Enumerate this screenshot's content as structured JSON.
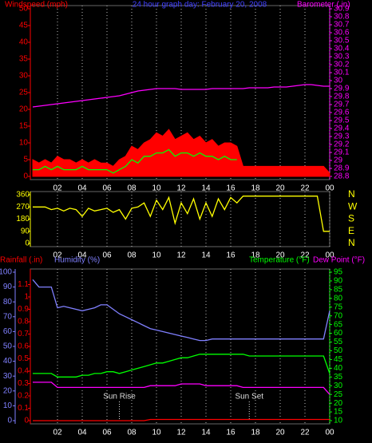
{
  "chart_data": [
    {
      "type": "line",
      "title": "24 hour graph day: February 20, 2008",
      "y_label": "Windspeed (mph)",
      "y2_label": "Barometer (.in)",
      "title_color": "#4040ff",
      "ytick_color": "#ff0000",
      "y2tick_color": "#ff00ff",
      "grid": true,
      "x": [
        0,
        0.5,
        1,
        1.5,
        2,
        2.5,
        3,
        3.5,
        4,
        4.5,
        5,
        5.5,
        6,
        6.5,
        7,
        7.5,
        8,
        8.5,
        9,
        9.5,
        10,
        10.5,
        11,
        11.5,
        12,
        12.5,
        13,
        13.5,
        14,
        14.5,
        15,
        15.5,
        16,
        16.5,
        17,
        17.5,
        18,
        18.5,
        19,
        19.5,
        20,
        20.5,
        21,
        21.5,
        22,
        22.5,
        23,
        23.5,
        24
      ],
      "xlim": [
        0,
        24
      ],
      "xticks": [
        {
          "value": 2,
          "label": "02"
        },
        {
          "value": 4,
          "label": "04"
        },
        {
          "value": 6,
          "label": "06"
        },
        {
          "value": 8,
          "label": "08"
        },
        10,
        12,
        14,
        16,
        18,
        20,
        22,
        {
          "value": 24,
          "label": "00"
        }
      ],
      "ylim": [
        0,
        50
      ],
      "yticks": [
        0,
        5,
        10,
        15,
        20,
        25,
        30,
        35,
        40,
        45,
        50
      ],
      "y2lim": [
        28.8,
        30.9
      ],
      "y2ticks": [
        28.8,
        28.9,
        29,
        29.1,
        29.2,
        29.3,
        29.4,
        29.5,
        29.6,
        29.7,
        29.8,
        29.9,
        30,
        30.1,
        30.2,
        30.3,
        30.4,
        30.5,
        30.6,
        30.7,
        30.8,
        30.9
      ],
      "series": [
        {
          "color": "#ff0000",
          "style": "area",
          "values": [
            5,
            4,
            5,
            4,
            6,
            5,
            5,
            4,
            5,
            4,
            5,
            4,
            4,
            3,
            5,
            6,
            9,
            8,
            10,
            11,
            13,
            12,
            14,
            11,
            12,
            13,
            11,
            12,
            10,
            11,
            9,
            10,
            10,
            9,
            3,
            3,
            3,
            3,
            3,
            3,
            3,
            3,
            3,
            3,
            3,
            3,
            3,
            3,
            1
          ]
        },
        {
          "color": "#00ff00",
          "style": "line",
          "values": [
            2,
            2,
            3,
            2,
            3,
            2,
            2,
            2,
            3,
            2,
            2,
            2,
            2,
            1,
            2,
            3,
            5,
            4,
            6,
            6,
            7,
            7,
            8,
            6,
            7,
            7,
            6,
            7,
            6,
            6,
            5,
            6,
            5,
            5,
            null,
            null,
            null,
            null,
            null,
            null,
            null,
            null,
            null,
            null,
            null,
            null,
            null,
            null,
            null
          ]
        },
        {
          "color": "#ff00ff",
          "style": "line",
          "axis": "y2",
          "values": [
            29.67,
            29.68,
            29.69,
            29.7,
            29.71,
            29.72,
            29.73,
            29.74,
            29.75,
            29.76,
            29.77,
            29.78,
            29.79,
            29.8,
            29.81,
            29.83,
            29.85,
            29.87,
            29.88,
            29.89,
            29.9,
            29.9,
            29.9,
            29.9,
            29.89,
            29.89,
            29.89,
            29.89,
            29.89,
            29.9,
            29.9,
            29.9,
            29.9,
            29.9,
            29.9,
            29.91,
            29.91,
            29.91,
            29.91,
            29.92,
            29.92,
            29.92,
            29.93,
            29.94,
            29.95,
            29.95,
            29.94,
            29.93,
            29.93
          ]
        }
      ]
    },
    {
      "type": "line",
      "ytick_color": "#ffff00",
      "y2tick_color": "#ffff00",
      "grid": true,
      "x": [
        0,
        0.5,
        1,
        1.5,
        2,
        2.5,
        3,
        3.5,
        4,
        4.5,
        5,
        5.5,
        6,
        6.5,
        7,
        7.5,
        8,
        8.5,
        9,
        9.5,
        10,
        10.5,
        11,
        11.5,
        12,
        12.5,
        13,
        13.5,
        14,
        14.5,
        15,
        15.5,
        16,
        16.5,
        17,
        17.5,
        18,
        18.5,
        19,
        19.5,
        20,
        20.5,
        21,
        21.5,
        22,
        22.5,
        23,
        23.5,
        24
      ],
      "xlim": [
        0,
        24
      ],
      "xticks": [
        {
          "value": 2,
          "label": "02"
        },
        {
          "value": 4,
          "label": "04"
        },
        {
          "value": 6,
          "label": "06"
        },
        {
          "value": 8,
          "label": "08"
        },
        10,
        12,
        14,
        16,
        18,
        20,
        22,
        {
          "value": 24,
          "label": "00"
        }
      ],
      "ylim": [
        0,
        360
      ],
      "yticks": [
        0,
        90,
        180,
        270,
        360
      ],
      "y2lim": [
        0,
        360
      ],
      "y2ticks": [
        {
          "value": 0,
          "label": "N"
        },
        {
          "value": 90,
          "label": "E"
        },
        {
          "value": 180,
          "label": "S"
        },
        {
          "value": 270,
          "label": "W"
        },
        {
          "value": 360,
          "label": "N"
        }
      ],
      "series": [
        {
          "color": "#ffff00",
          "style": "line",
          "values": [
            270,
            270,
            270,
            250,
            260,
            240,
            260,
            250,
            200,
            260,
            240,
            250,
            260,
            230,
            250,
            180,
            260,
            270,
            300,
            200,
            320,
            250,
            340,
            150,
            300,
            220,
            330,
            180,
            300,
            200,
            330,
            250,
            340,
            300,
            350,
            350,
            350,
            350,
            350,
            350,
            350,
            350,
            350,
            350,
            350,
            350,
            350,
            90,
            90
          ]
        }
      ]
    },
    {
      "type": "line",
      "ytick_color": "#8080ff",
      "y2tick_color": "#ff0000",
      "y3tick_color": "#00ff00",
      "grid": true,
      "x": [
        0,
        0.5,
        1,
        1.5,
        2,
        2.5,
        3,
        3.5,
        4,
        4.5,
        5,
        5.5,
        6,
        6.5,
        7,
        7.5,
        8,
        8.5,
        9,
        9.5,
        10,
        10.5,
        11,
        11.5,
        12,
        12.5,
        13,
        13.5,
        14,
        14.5,
        15,
        15.5,
        16,
        16.5,
        17,
        17.5,
        18,
        18.5,
        19,
        19.5,
        20,
        20.5,
        21,
        21.5,
        22,
        22.5,
        23,
        23.5,
        24
      ],
      "xlim": [
        0,
        24
      ],
      "xticks": [
        {
          "value": 2,
          "label": "02"
        },
        {
          "value": 4,
          "label": "04"
        },
        {
          "value": 6,
          "label": "06"
        },
        {
          "value": 8,
          "label": "08"
        },
        10,
        12,
        14,
        16,
        18,
        20,
        22,
        {
          "value": 24,
          "label": "00"
        }
      ],
      "ylim": [
        0,
        100
      ],
      "yticks": [
        0,
        10,
        20,
        30,
        40,
        50,
        60,
        70,
        80,
        90,
        100
      ],
      "y2lim": [
        0,
        1.2
      ],
      "y2ticks": [
        0,
        0.1,
        0.2,
        0.3,
        0.4,
        0.5,
        0.6,
        0.7,
        0.8,
        0.9,
        1,
        1.1
      ],
      "y3lim": [
        10,
        95
      ],
      "y3ticks": [
        10,
        15,
        20,
        25,
        30,
        35,
        40,
        45,
        50,
        55,
        60,
        65,
        70,
        75,
        80,
        85,
        90,
        95
      ],
      "annotations": [
        {
          "text": "Sun Rise",
          "x": 7
        },
        {
          "text": "Sun Set",
          "x": 17.5
        }
      ],
      "series": [
        {
          "name": "Rainfall (.in)",
          "color": "#ff0000",
          "style": "line",
          "axis": "y2",
          "values": [
            0,
            0,
            0,
            0,
            0,
            0,
            0,
            0,
            0,
            0,
            0,
            0,
            0,
            0,
            0,
            0,
            0,
            0,
            0,
            0.01,
            0.01,
            0.01,
            0.01,
            0.01,
            0.01,
            0.01,
            0.01,
            0.01,
            0.01,
            0.01,
            0.01,
            0.01,
            0.01,
            0.01,
            0.01,
            0.01,
            0.01,
            0.01,
            0.01,
            0.01,
            0.01,
            0.01,
            0.01,
            0.01,
            0.01,
            0.01,
            0.01,
            0.01,
            0.01
          ]
        },
        {
          "name": "Humidity (%)",
          "color": "#8080ff",
          "style": "line",
          "values": [
            95,
            90,
            90,
            90,
            76,
            77,
            76,
            75,
            74,
            75,
            76,
            78,
            78,
            75,
            72,
            70,
            68,
            66,
            64,
            62,
            61,
            60,
            59,
            58,
            57,
            56,
            55,
            54,
            54,
            55,
            55,
            55,
            55,
            55,
            55,
            55,
            55,
            55,
            55,
            55,
            55,
            55,
            55,
            55,
            55,
            55,
            55,
            55,
            74
          ]
        },
        {
          "name": "Temperature (°F)",
          "color": "#00ff00",
          "style": "line",
          "axis": "y3",
          "values": [
            37,
            37,
            37,
            37,
            35,
            35,
            35,
            35,
            36,
            36,
            37,
            37,
            38,
            38,
            37,
            38,
            39,
            40,
            41,
            42,
            43,
            43,
            44,
            45,
            46,
            46,
            47,
            48,
            48,
            48,
            48,
            48,
            48,
            48,
            48,
            47,
            47,
            47,
            47,
            47,
            47,
            47,
            47,
            47,
            47,
            47,
            47,
            47,
            37
          ]
        },
        {
          "name": "Dew Point (°F)",
          "color": "#ff00ff",
          "style": "line",
          "axis": "y3",
          "values": [
            32,
            32,
            32,
            32,
            29,
            29,
            29,
            29,
            29,
            29,
            29,
            29,
            29,
            29,
            29,
            29,
            29,
            29,
            29,
            30,
            30,
            30,
            30,
            30,
            31,
            31,
            31,
            31,
            30,
            30,
            30,
            30,
            30,
            30,
            29,
            29,
            29,
            29,
            29,
            29,
            29,
            29,
            29,
            29,
            29,
            29,
            29,
            29,
            25
          ]
        }
      ]
    }
  ]
}
